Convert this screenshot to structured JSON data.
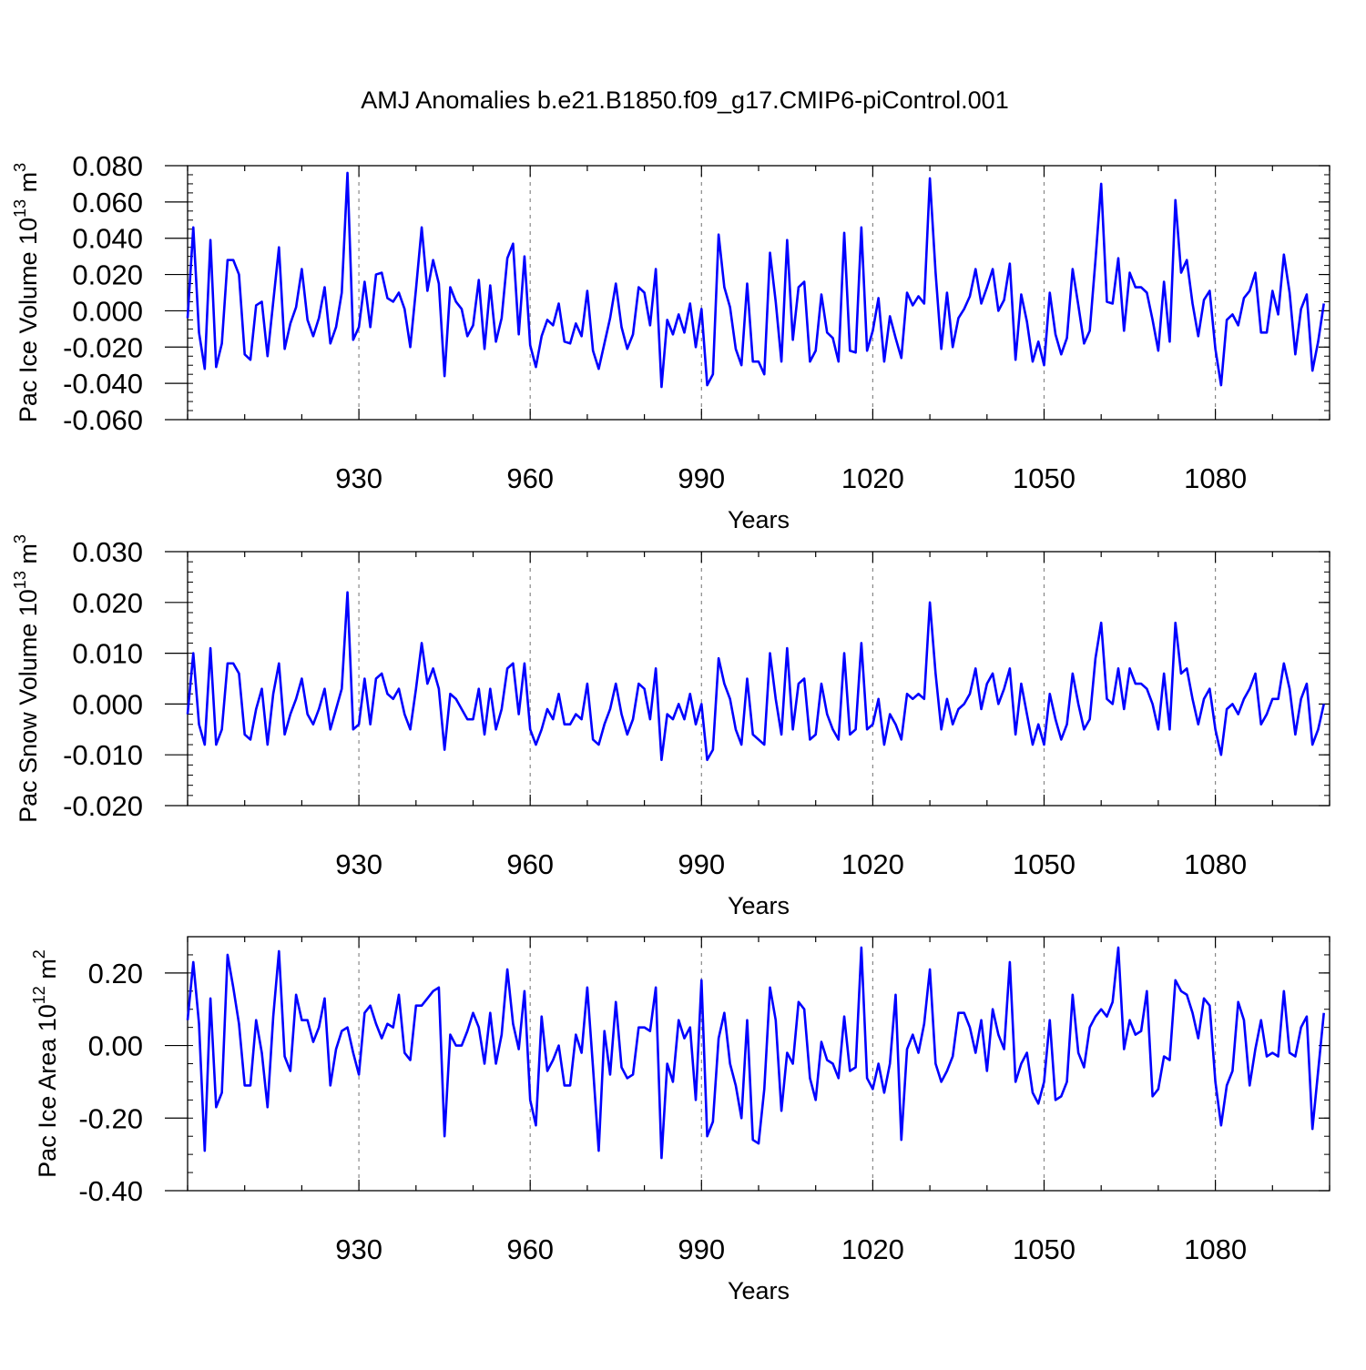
{
  "title": "AMJ Anomalies b.e21.B1850.f09_g17.CMIP6-piControl.001",
  "line_color": "#0000ff",
  "chart_data": [
    {
      "type": "line",
      "name": "ice-volume",
      "ylabel": {
        "base": "Pac Ice Volume 10",
        "exp": "13",
        "unit": " m",
        "unit_exp": "3"
      },
      "xlabel": "Years",
      "xlim": [
        900,
        1100
      ],
      "ylim": [
        -0.06,
        0.08
      ],
      "xticks": [
        930,
        960,
        990,
        1020,
        1050,
        1080
      ],
      "xtick_labels": [
        "930",
        "960",
        "990",
        "1020",
        "1050",
        "1080"
      ],
      "yticks": [
        -0.06,
        -0.04,
        -0.02,
        0.0,
        0.02,
        0.04,
        0.06,
        0.08
      ],
      "ytick_labels": [
        "-0.060",
        "-0.040",
        "-0.020",
        "0.000",
        "0.020",
        "0.040",
        "0.060",
        "0.080"
      ],
      "y_minor_step": 0.005,
      "x_start": 900,
      "values": [
        -0.004,
        0.046,
        -0.012,
        -0.032,
        0.039,
        -0.031,
        -0.018,
        0.028,
        0.028,
        0.02,
        -0.024,
        -0.027,
        0.003,
        0.005,
        -0.025,
        0.005,
        0.035,
        -0.021,
        -0.007,
        0.002,
        0.023,
        -0.005,
        -0.014,
        -0.004,
        0.013,
        -0.018,
        -0.009,
        0.01,
        0.076,
        -0.016,
        -0.009,
        0.016,
        -0.009,
        0.02,
        0.021,
        0.007,
        0.005,
        0.01,
        0.001,
        -0.02,
        0.012,
        0.046,
        0.011,
        0.028,
        0.015,
        -0.036,
        0.013,
        0.005,
        0.001,
        -0.014,
        -0.008,
        0.017,
        -0.021,
        0.014,
        -0.017,
        -0.004,
        0.029,
        0.037,
        -0.013,
        0.03,
        -0.019,
        -0.031,
        -0.014,
        -0.005,
        -0.008,
        0.004,
        -0.017,
        -0.018,
        -0.007,
        -0.014,
        0.011,
        -0.022,
        -0.032,
        -0.018,
        -0.004,
        0.015,
        -0.009,
        -0.021,
        -0.013,
        0.013,
        0.01,
        -0.008,
        0.023,
        -0.042,
        -0.005,
        -0.013,
        -0.002,
        -0.012,
        0.004,
        -0.02,
        0.001,
        -0.041,
        -0.035,
        0.042,
        0.013,
        0.002,
        -0.021,
        -0.03,
        0.015,
        -0.028,
        -0.028,
        -0.035,
        0.032,
        0.005,
        -0.028,
        0.039,
        -0.016,
        0.013,
        0.016,
        -0.028,
        -0.022,
        0.009,
        -0.012,
        -0.015,
        -0.028,
        0.043,
        -0.022,
        -0.023,
        0.046,
        -0.022,
        -0.011,
        0.007,
        -0.028,
        -0.003,
        -0.015,
        -0.026,
        0.01,
        0.003,
        0.008,
        0.004,
        0.073,
        0.021,
        -0.021,
        0.01,
        -0.02,
        -0.004,
        0.001,
        0.008,
        0.023,
        0.004,
        0.013,
        0.023,
        0.0,
        0.006,
        0.026,
        -0.027,
        0.009,
        -0.006,
        -0.028,
        -0.017,
        -0.03,
        0.01,
        -0.013,
        -0.024,
        -0.015,
        0.023,
        0.003,
        -0.018,
        -0.011,
        0.028,
        0.07,
        0.005,
        0.004,
        0.029,
        -0.011,
        0.021,
        0.013,
        0.013,
        0.01,
        -0.005,
        -0.022,
        0.016,
        -0.017,
        0.061,
        0.021,
        0.028,
        0.004,
        -0.014,
        0.006,
        0.011,
        -0.021,
        -0.041,
        -0.005,
        -0.002,
        -0.008,
        0.007,
        0.011,
        0.021,
        -0.012,
        -0.012,
        0.011,
        -0.002,
        0.031,
        0.01,
        -0.024,
        0.001,
        0.009,
        -0.033,
        -0.017,
        0.004
      ]
    },
    {
      "type": "line",
      "name": "snow-volume",
      "ylabel": {
        "base": "Pac Snow Volume 10",
        "exp": "13",
        "unit": " m",
        "unit_exp": "3"
      },
      "xlabel": "Years",
      "xlim": [
        900,
        1100
      ],
      "ylim": [
        -0.02,
        0.03
      ],
      "xticks": [
        930,
        960,
        990,
        1020,
        1050,
        1080
      ],
      "xtick_labels": [
        "930",
        "960",
        "990",
        "1020",
        "1050",
        "1080"
      ],
      "yticks": [
        -0.02,
        -0.01,
        0.0,
        0.01,
        0.02,
        0.03
      ],
      "ytick_labels": [
        "-0.020",
        "-0.010",
        "0.000",
        "0.010",
        "0.020",
        "0.030"
      ],
      "y_minor_step": 0.002,
      "x_start": 900,
      "values": [
        -0.002,
        0.01,
        -0.004,
        -0.008,
        0.011,
        -0.008,
        -0.005,
        0.008,
        0.008,
        0.006,
        -0.006,
        -0.007,
        -0.001,
        0.003,
        -0.008,
        0.002,
        0.008,
        -0.006,
        -0.002,
        0.001,
        0.005,
        -0.002,
        -0.004,
        -0.001,
        0.003,
        -0.005,
        -0.001,
        0.003,
        0.022,
        -0.005,
        -0.004,
        0.005,
        -0.004,
        0.005,
        0.006,
        0.002,
        0.001,
        0.003,
        -0.002,
        -0.005,
        0.003,
        0.012,
        0.004,
        0.007,
        0.003,
        -0.009,
        0.002,
        0.001,
        -0.001,
        -0.003,
        -0.003,
        0.003,
        -0.006,
        0.003,
        -0.005,
        -0.001,
        0.007,
        0.008,
        -0.002,
        0.008,
        -0.005,
        -0.008,
        -0.005,
        -0.001,
        -0.003,
        0.002,
        -0.004,
        -0.004,
        -0.002,
        -0.003,
        0.004,
        -0.007,
        -0.008,
        -0.004,
        -0.001,
        0.004,
        -0.002,
        -0.006,
        -0.003,
        0.004,
        0.003,
        -0.003,
        0.007,
        -0.011,
        -0.002,
        -0.003,
        0.0,
        -0.003,
        0.002,
        -0.004,
        0.0,
        -0.011,
        -0.009,
        0.009,
        0.004,
        0.001,
        -0.005,
        -0.008,
        0.005,
        -0.006,
        -0.007,
        -0.008,
        0.01,
        0.001,
        -0.006,
        0.011,
        -0.005,
        0.004,
        0.005,
        -0.007,
        -0.006,
        0.004,
        -0.002,
        -0.005,
        -0.007,
        0.01,
        -0.006,
        -0.005,
        0.012,
        -0.005,
        -0.004,
        0.001,
        -0.008,
        -0.002,
        -0.004,
        -0.007,
        0.002,
        0.001,
        0.002,
        0.001,
        0.02,
        0.006,
        -0.005,
        0.001,
        -0.004,
        -0.001,
        0.0,
        0.002,
        0.007,
        -0.001,
        0.004,
        0.006,
        0.0,
        0.003,
        0.007,
        -0.006,
        0.004,
        -0.002,
        -0.008,
        -0.004,
        -0.008,
        0.002,
        -0.003,
        -0.007,
        -0.004,
        0.006,
        0.0,
        -0.005,
        -0.003,
        0.009,
        0.016,
        0.001,
        0.0,
        0.007,
        -0.001,
        0.007,
        0.004,
        0.004,
        0.003,
        0.0,
        -0.005,
        0.006,
        -0.005,
        0.016,
        0.006,
        0.007,
        0.001,
        -0.004,
        0.001,
        0.003,
        -0.005,
        -0.01,
        -0.001,
        0.0,
        -0.002,
        0.001,
        0.003,
        0.006,
        -0.004,
        -0.002,
        0.001,
        0.001,
        0.008,
        0.003,
        -0.006,
        0.001,
        0.004,
        -0.008,
        -0.005,
        0.0
      ]
    },
    {
      "type": "line",
      "name": "ice-area",
      "ylabel": {
        "base": "Pac Ice Area 10",
        "exp": "12",
        "unit": " m",
        "unit_exp": "2"
      },
      "xlabel": "Years",
      "xlim": [
        900,
        1100
      ],
      "ylim": [
        -0.4,
        0.3
      ],
      "xticks": [
        930,
        960,
        990,
        1020,
        1050,
        1080
      ],
      "xtick_labels": [
        "930",
        "960",
        "990",
        "1020",
        "1050",
        "1080"
      ],
      "yticks": [
        -0.4,
        -0.2,
        0.0,
        0.2
      ],
      "ytick_labels": [
        "-0.40",
        "-0.20",
        "0.00",
        "0.20"
      ],
      "y_minor_step": 0.05,
      "x_start": 900,
      "values": [
        0.07,
        0.23,
        0.06,
        -0.29,
        0.13,
        -0.17,
        -0.13,
        0.25,
        0.16,
        0.06,
        -0.11,
        -0.11,
        0.07,
        -0.02,
        -0.17,
        0.08,
        0.26,
        -0.03,
        -0.07,
        0.14,
        0.07,
        0.07,
        0.01,
        0.05,
        0.13,
        -0.11,
        -0.01,
        0.04,
        0.05,
        -0.02,
        -0.08,
        0.09,
        0.11,
        0.06,
        0.02,
        0.06,
        0.05,
        0.14,
        -0.02,
        -0.04,
        0.11,
        0.11,
        0.13,
        0.15,
        0.16,
        -0.25,
        0.03,
        0.0,
        0.0,
        0.04,
        0.09,
        0.05,
        -0.05,
        0.09,
        -0.05,
        0.03,
        0.21,
        0.06,
        -0.01,
        0.15,
        -0.15,
        -0.22,
        0.08,
        -0.07,
        -0.04,
        0.0,
        -0.11,
        -0.11,
        0.03,
        -0.02,
        0.16,
        -0.06,
        -0.29,
        0.04,
        -0.08,
        0.12,
        -0.06,
        -0.09,
        -0.08,
        0.05,
        0.05,
        0.04,
        0.16,
        -0.31,
        -0.05,
        -0.1,
        0.07,
        0.02,
        0.05,
        -0.15,
        0.18,
        -0.25,
        -0.21,
        0.02,
        0.09,
        -0.05,
        -0.11,
        -0.2,
        0.07,
        -0.26,
        -0.27,
        -0.12,
        0.16,
        0.07,
        -0.18,
        -0.02,
        -0.05,
        0.12,
        0.1,
        -0.09,
        -0.15,
        0.01,
        -0.04,
        -0.05,
        -0.09,
        0.08,
        -0.07,
        -0.06,
        0.27,
        -0.09,
        -0.12,
        -0.05,
        -0.13,
        -0.05,
        0.14,
        -0.26,
        -0.01,
        0.03,
        -0.02,
        0.06,
        0.21,
        -0.05,
        -0.1,
        -0.07,
        -0.03,
        0.09,
        0.09,
        0.05,
        -0.02,
        0.07,
        -0.07,
        0.1,
        0.03,
        -0.01,
        0.23,
        -0.1,
        -0.05,
        -0.02,
        -0.13,
        -0.16,
        -0.1,
        0.07,
        -0.15,
        -0.14,
        -0.1,
        0.14,
        -0.02,
        -0.06,
        0.05,
        0.08,
        0.1,
        0.08,
        0.12,
        0.27,
        -0.01,
        0.07,
        0.03,
        0.04,
        0.15,
        -0.14,
        -0.12,
        -0.03,
        -0.04,
        0.18,
        0.15,
        0.14,
        0.09,
        0.02,
        0.13,
        0.11,
        -0.1,
        -0.22,
        -0.11,
        -0.07,
        0.12,
        0.07,
        -0.11,
        -0.01,
        0.07,
        -0.03,
        -0.02,
        -0.03,
        0.15,
        -0.02,
        -0.03,
        0.05,
        0.08,
        -0.23,
        -0.07,
        0.09
      ]
    }
  ]
}
